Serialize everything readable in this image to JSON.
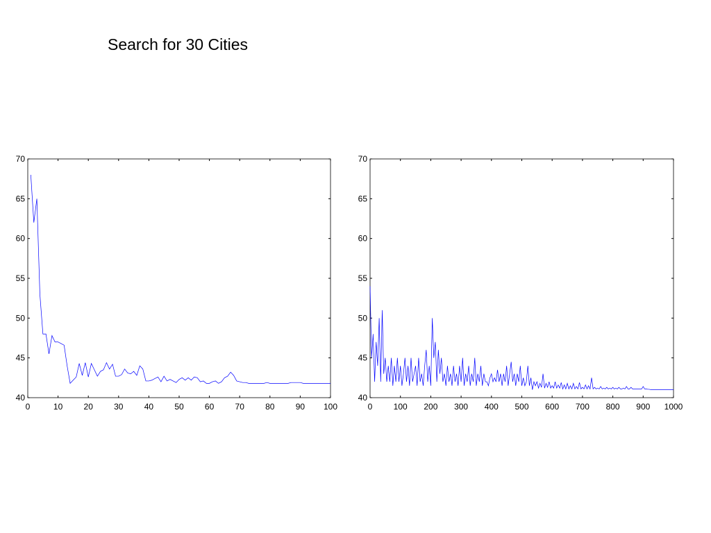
{
  "title": "Search for 30 Cities",
  "chart_data": [
    {
      "type": "line",
      "color": "#0000ff",
      "xlim": [
        0,
        100
      ],
      "xticks": [
        0,
        10,
        20,
        30,
        40,
        50,
        60,
        70,
        80,
        90,
        100
      ],
      "ylim": [
        40,
        70
      ],
      "yticks": [
        40,
        45,
        50,
        55,
        60,
        65,
        70
      ],
      "x": [
        1,
        2,
        3,
        4,
        5,
        6,
        7,
        8,
        9,
        10,
        11,
        12,
        13,
        14,
        15,
        16,
        17,
        18,
        19,
        20,
        21,
        22,
        23,
        24,
        25,
        26,
        27,
        28,
        29,
        30,
        31,
        32,
        33,
        34,
        35,
        36,
        37,
        38,
        39,
        40,
        41,
        42,
        43,
        44,
        45,
        46,
        47,
        48,
        49,
        50,
        51,
        52,
        53,
        54,
        55,
        56,
        57,
        58,
        59,
        60,
        61,
        62,
        63,
        64,
        65,
        66,
        67,
        68,
        69,
        70,
        71,
        72,
        73,
        74,
        75,
        76,
        77,
        78,
        79,
        80,
        81,
        82,
        83,
        84,
        85,
        86,
        87,
        88,
        89,
        90,
        91,
        92,
        93,
        94,
        95,
        96,
        97,
        98,
        99,
        100
      ],
      "values": [
        68,
        62,
        65,
        53,
        48,
        48,
        45.5,
        47.8,
        47,
        47,
        46.8,
        46.6,
        44,
        41.8,
        42.2,
        42.6,
        44.3,
        42.8,
        44.4,
        42.6,
        44.3,
        43.5,
        42.7,
        43.3,
        43.5,
        44.4,
        43.6,
        44.2,
        42.7,
        42.7,
        42.9,
        43.6,
        43.1,
        43.0,
        43.3,
        42.8,
        44.0,
        43.6,
        42.1,
        42.1,
        42.2,
        42.4,
        42.6,
        42.0,
        42.7,
        42.1,
        42.3,
        42.1,
        41.9,
        42.3,
        42.5,
        42.2,
        42.5,
        42.2,
        42.6,
        42.5,
        42.0,
        42.1,
        41.8,
        41.8,
        42.0,
        42.1,
        41.8,
        42.0,
        42.5,
        42.7,
        43.2,
        42.8,
        42.1,
        42.0,
        41.9,
        41.9,
        41.8,
        41.8,
        41.8,
        41.8,
        41.8,
        41.8,
        41.9,
        41.8,
        41.8,
        41.8,
        41.8,
        41.8,
        41.8,
        41.8,
        41.9,
        41.9,
        41.9,
        41.9,
        41.8,
        41.8,
        41.8,
        41.8,
        41.8,
        41.8,
        41.8,
        41.8,
        41.8,
        41.8
      ]
    },
    {
      "type": "line",
      "color": "#0000ff",
      "xlim": [
        0,
        1000
      ],
      "xticks": [
        0,
        100,
        200,
        300,
        400,
        500,
        600,
        700,
        800,
        900,
        1000
      ],
      "ylim": [
        40,
        70
      ],
      "yticks": [
        40,
        45,
        50,
        55,
        60,
        65,
        70
      ],
      "x": [
        0,
        5,
        10,
        15,
        20,
        25,
        30,
        35,
        40,
        45,
        50,
        55,
        60,
        65,
        70,
        75,
        80,
        85,
        90,
        95,
        100,
        105,
        110,
        115,
        120,
        125,
        130,
        135,
        140,
        145,
        150,
        155,
        160,
        165,
        170,
        175,
        180,
        185,
        190,
        195,
        200,
        205,
        210,
        215,
        220,
        225,
        230,
        235,
        240,
        245,
        250,
        255,
        260,
        265,
        270,
        275,
        280,
        285,
        290,
        295,
        300,
        305,
        310,
        315,
        320,
        325,
        330,
        335,
        340,
        345,
        350,
        355,
        360,
        365,
        370,
        375,
        380,
        385,
        390,
        395,
        400,
        405,
        410,
        415,
        420,
        425,
        430,
        435,
        440,
        445,
        450,
        455,
        460,
        465,
        470,
        475,
        480,
        485,
        490,
        495,
        500,
        505,
        510,
        515,
        520,
        525,
        530,
        535,
        540,
        545,
        550,
        555,
        560,
        565,
        570,
        575,
        580,
        585,
        590,
        595,
        600,
        605,
        610,
        615,
        620,
        625,
        630,
        635,
        640,
        645,
        650,
        655,
        660,
        665,
        670,
        675,
        680,
        685,
        690,
        695,
        700,
        705,
        710,
        715,
        720,
        725,
        730,
        735,
        740,
        745,
        750,
        755,
        760,
        765,
        770,
        775,
        780,
        785,
        790,
        795,
        800,
        805,
        810,
        815,
        820,
        825,
        830,
        835,
        840,
        845,
        850,
        855,
        860,
        865,
        870,
        875,
        880,
        885,
        890,
        895,
        900,
        905,
        910,
        915,
        920,
        925,
        930,
        935,
        940,
        945,
        950,
        955,
        960,
        965,
        970,
        975,
        980,
        985,
        990,
        995,
        1000
      ],
      "values": [
        54,
        45,
        48,
        42,
        47,
        44,
        50,
        42,
        51,
        43,
        45,
        42,
        44,
        42,
        45,
        41.5,
        44,
        42,
        45,
        42,
        44,
        41.5,
        43,
        45,
        42,
        44,
        41.5,
        45,
        42,
        43,
        44,
        41.5,
        45,
        42,
        43,
        41.5,
        44,
        46,
        42,
        44,
        41.5,
        50,
        45,
        47,
        42,
        46,
        43,
        45,
        42,
        43,
        41.5,
        44,
        42,
        43,
        41.5,
        44,
        42,
        43,
        41.5,
        44,
        42,
        45,
        41.5,
        43,
        42,
        44,
        41.5,
        43,
        42,
        45,
        41.5,
        43,
        42,
        44,
        41.5,
        43,
        42,
        42,
        41.5,
        42.5,
        43,
        42,
        42.5,
        42,
        43.5,
        42,
        43,
        41.5,
        43,
        42,
        44,
        41.5,
        43,
        44.5,
        42,
        43,
        41.5,
        43,
        42,
        44,
        41.5,
        42.5,
        41.5,
        42,
        44,
        41.5,
        42.5,
        41,
        42,
        41.5,
        42,
        41.2,
        41.8,
        41.3,
        43,
        41.2,
        41.8,
        41.3,
        42,
        41.2,
        41.5,
        41.2,
        42,
        41.2,
        41.6,
        41.2,
        41.9,
        41.1,
        41.6,
        41.1,
        41.8,
        41.1,
        41.5,
        41.1,
        41.8,
        41.1,
        41.4,
        41.1,
        41.9,
        41.1,
        41.3,
        41.1,
        41.6,
        41.1,
        41.5,
        41.1,
        42.5,
        41.1,
        41.3,
        41.1,
        41.2,
        41.1,
        41.4,
        41.1,
        41.2,
        41.1,
        41.3,
        41.1,
        41.2,
        41.1,
        41.3,
        41.1,
        41.2,
        41.1,
        41.3,
        41.1,
        41.1,
        41.2,
        41.1,
        41.4,
        41.1,
        41.1,
        41.3,
        41.1,
        41.1,
        41.1,
        41.1,
        41.1,
        41.1,
        41.1,
        41.4,
        41.1,
        41.1,
        41.05,
        41.05,
        41,
        41,
        41,
        41,
        41,
        41,
        41,
        41,
        41,
        41,
        41,
        41,
        41,
        41,
        41,
        41
      ]
    }
  ]
}
